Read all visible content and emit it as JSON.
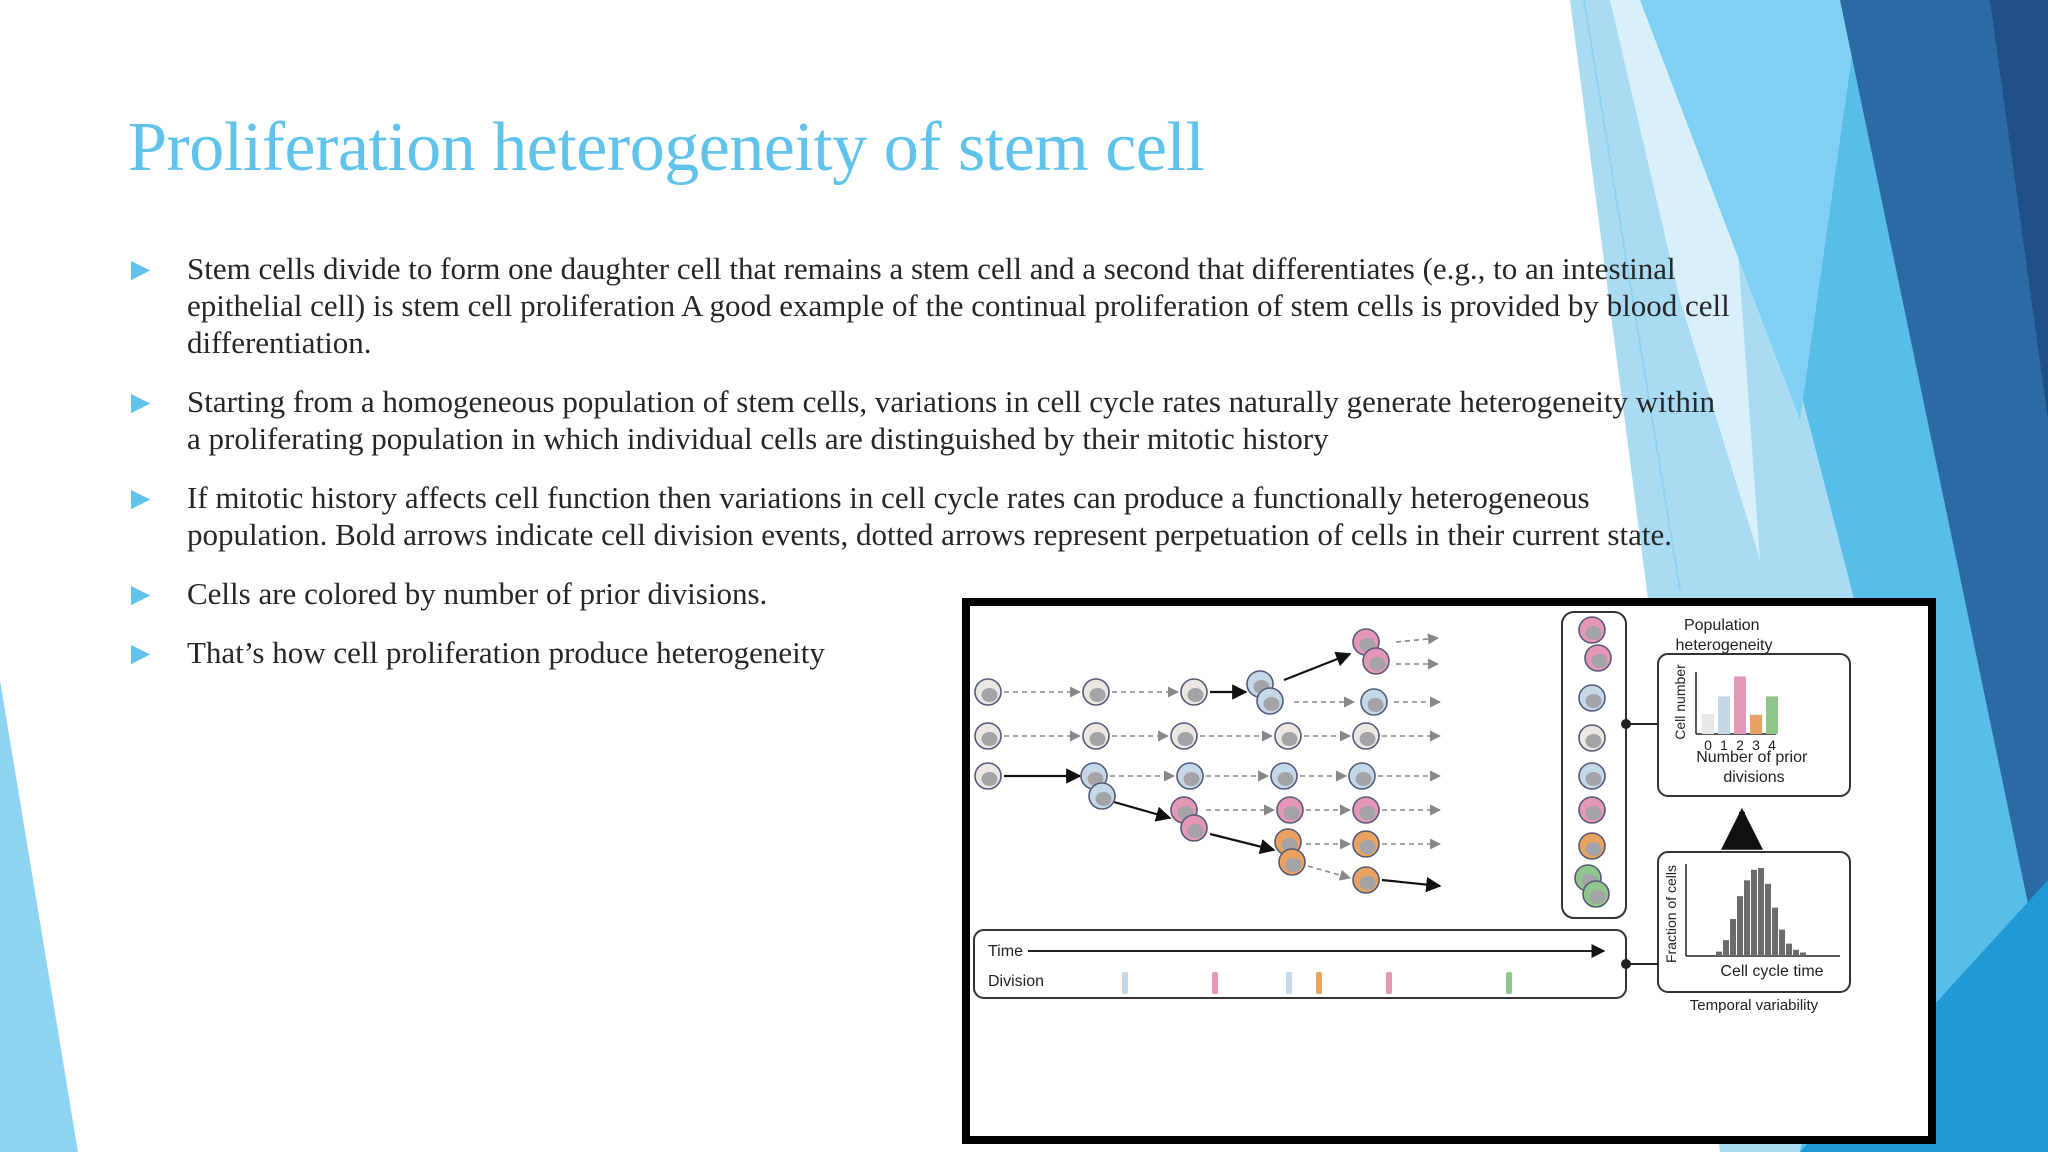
{
  "slide": {
    "title": "Proliferation heterogeneity of stem cell",
    "bullet_icon": "triangle-right-icon",
    "colors": {
      "title": "#5fc3ec",
      "text": "#262626",
      "bullet": "#5fc3ec",
      "deco_dark": "#2a6ea8",
      "deco_mid": "#4fb5e6",
      "deco_light": "#9fdaf4"
    },
    "bullets": [
      "Stem cells divide to form one daughter cell that remains a stem cell and a second that differentiates (e.g., to an intestinal epithelial cell) is stem cell proliferation A good example of the continual proliferation of stem cells is provided by blood cell differentiation.",
      "Starting from a homogeneous population of stem cells, variations in cell cycle rates naturally generate heterogeneity within a proliferating population in which individual cells are distinguished by their mitotic history",
      " If mitotic history affects cell function then variations in cell cycle rates can produce a functionally heterogeneous population. Bold arrows indicate cell division events, dotted arrows represent perpetuation of cells in their current state.",
      "Cells are colored by number of prior divisions.",
      "That’s how cell proliferation produce heterogeneity"
    ]
  },
  "figure": {
    "population_title": "Population heterogeneity",
    "histogram_ylabel": "Cell number",
    "histogram_ticks": [
      "0",
      "1",
      "2",
      "3",
      "4"
    ],
    "histogram_xlabel": "Number of prior divisions",
    "histogram_values": [
      0.25,
      0.47,
      0.72,
      0.24,
      0.47
    ],
    "temporal_ylabel": "Fraction of cells",
    "temporal_xlabel": "Cell cycle time",
    "temporal_title": "Temporal variability",
    "timeline_time_label": "Time",
    "timeline_division_label": "Division",
    "division_colors": {
      "0": "#ece7e2",
      "1": "#c5d8e8",
      "2": "#e597b7",
      "3": "#e9a260",
      "4": "#8fc78b"
    }
  }
}
